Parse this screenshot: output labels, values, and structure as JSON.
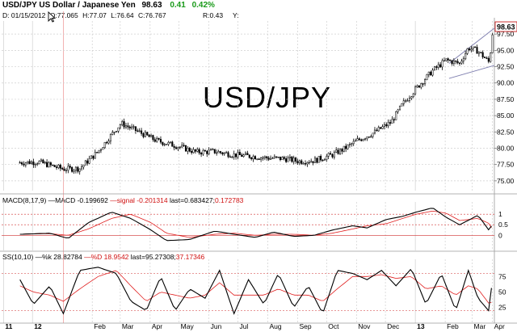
{
  "header": {
    "symbol_line": "USD/JPY US Dollar / Japanese Yen",
    "last": "98.63",
    "change": "0.41",
    "change_pct": "0.42%",
    "date_label": "D: 01/15/2012",
    "open": "O:77.065",
    "high": "H:77.07",
    "low": "L:76.64",
    "close": "C:76.767",
    "r_label": "R:0.43",
    "y_label": "Y:"
  },
  "watermark": "USD/JPY",
  "macd_header": {
    "prefix": "MACD(8,17,9) —MACD -0.199692",
    "signal": " —signal -0.201314",
    "last": " last=0.683427;",
    "last_red": "0.172783"
  },
  "ss_header": {
    "prefix": "SS(10,10) —%k 28.82784",
    "d": " —%D 18.9542",
    "last": " last=95.27308;",
    "last_red": "37.17346"
  },
  "colors": {
    "price": "#000000",
    "signal": "#e02020",
    "refline": "#d03030",
    "grid": "#cfcfcf",
    "channel": "#8080b0",
    "last_box": "#c00000"
  },
  "chart_data": [
    {
      "type": "line",
      "title": "USD/JPY US Dollar / Japanese Yen",
      "style": "candlestick (daily)",
      "x_tick_labels": [
        "11",
        "12",
        "Feb",
        "Mar",
        "Apr",
        "May",
        "Jun",
        "Jul",
        "Aug",
        "Sep",
        "Oct",
        "Nov",
        "Dec",
        "13",
        "Feb",
        "Mar",
        "Apr"
      ],
      "y_tick_labels": [
        "75.00",
        "77.50",
        "80.00",
        "82.50",
        "85.00",
        "87.50",
        "90.00",
        "92.50",
        "95.00",
        "97.50"
      ],
      "ylim": [
        73.5,
        99.5
      ],
      "last_value": 98.63,
      "series": [
        {
          "name": "USD/JPY",
          "x": [
            "2011-12-01",
            "2011-12-20",
            "2012-01-15",
            "2012-02-01",
            "2012-02-20",
            "2012-03-10",
            "2012-03-15",
            "2012-04-01",
            "2012-04-20",
            "2012-05-15",
            "2012-06-01",
            "2012-06-20",
            "2012-07-10",
            "2012-07-25",
            "2012-08-15",
            "2012-09-01",
            "2012-09-15",
            "2012-10-01",
            "2012-10-20",
            "2012-11-01",
            "2012-11-15",
            "2012-12-01",
            "2012-12-20",
            "2013-01-01",
            "2013-01-15",
            "2013-02-01",
            "2013-02-15",
            "2013-03-01",
            "2013-03-10",
            "2013-03-20",
            "2013-04-01",
            "2013-04-03",
            "2013-04-05"
          ],
          "values": [
            77.8,
            77.9,
            76.8,
            76.9,
            79.5,
            83.0,
            83.8,
            82.6,
            81.2,
            80.2,
            79.4,
            79.5,
            79.0,
            78.8,
            78.5,
            78.4,
            78.0,
            78.1,
            79.0,
            79.9,
            81.2,
            82.3,
            84.0,
            86.8,
            89.2,
            91.9,
            93.5,
            93.0,
            95.4,
            94.9,
            93.1,
            96.6,
            98.6
          ]
        }
      ]
    },
    {
      "type": "line",
      "title": "MACD(8,17,9)",
      "y_tick_labels": [
        "1",
        "0.5",
        "0"
      ],
      "ylim": [
        -0.6,
        1.35
      ],
      "reference_lines": [
        1,
        0.5,
        0
      ],
      "series": [
        {
          "name": "MACD",
          "x": [
            "2011-12-01",
            "2012-01-01",
            "2012-01-20",
            "2012-02-10",
            "2012-03-05",
            "2012-03-25",
            "2012-04-15",
            "2012-05-01",
            "2012-05-25",
            "2012-06-20",
            "2012-07-10",
            "2012-08-01",
            "2012-08-20",
            "2012-09-10",
            "2012-10-01",
            "2012-10-20",
            "2012-11-10",
            "2012-11-25",
            "2012-12-15",
            "2013-01-01",
            "2013-01-15",
            "2013-02-01",
            "2013-02-15",
            "2013-03-01",
            "2013-03-20",
            "2013-04-01",
            "2013-04-05"
          ],
          "values": [
            0.05,
            0.1,
            -0.15,
            0.6,
            1.1,
            0.8,
            0.25,
            -0.25,
            -0.2,
            0.2,
            0.05,
            -0.1,
            0.15,
            -0.05,
            0.0,
            0.25,
            0.45,
            0.35,
            0.75,
            0.9,
            1.1,
            1.3,
            0.85,
            0.5,
            0.95,
            0.2,
            0.68
          ]
        },
        {
          "name": "signal",
          "x": [
            "2011-12-01",
            "2012-01-01",
            "2012-01-20",
            "2012-02-10",
            "2012-03-05",
            "2012-03-25",
            "2012-04-15",
            "2012-05-01",
            "2012-05-25",
            "2012-06-20",
            "2012-07-10",
            "2012-08-01",
            "2012-08-20",
            "2012-09-10",
            "2012-10-01",
            "2012-10-20",
            "2012-11-10",
            "2012-11-25",
            "2012-12-15",
            "2013-01-01",
            "2013-01-15",
            "2013-02-01",
            "2013-02-15",
            "2013-03-01",
            "2013-03-20",
            "2013-04-01",
            "2013-04-05"
          ],
          "values": [
            0.05,
            0.08,
            0.0,
            0.3,
            0.8,
            1.0,
            0.6,
            0.1,
            -0.1,
            0.05,
            0.1,
            0.0,
            0.05,
            0.05,
            0.0,
            0.1,
            0.3,
            0.45,
            0.55,
            0.8,
            1.0,
            1.15,
            1.05,
            0.7,
            0.8,
            0.55,
            0.17
          ]
        }
      ]
    },
    {
      "type": "line",
      "title": "SS(10,10)",
      "y_tick_labels": [
        "75",
        "50",
        "25"
      ],
      "ylim": [
        5,
        95
      ],
      "reference_lines": [
        80,
        20
      ],
      "series": [
        {
          "name": "%k",
          "x": [
            "2011-12-01",
            "2011-12-15",
            "2012-01-01",
            "2012-01-15",
            "2012-02-01",
            "2012-02-20",
            "2012-03-10",
            "2012-03-25",
            "2012-04-10",
            "2012-04-25",
            "2012-05-10",
            "2012-05-25",
            "2012-06-10",
            "2012-06-25",
            "2012-07-10",
            "2012-07-25",
            "2012-08-10",
            "2012-08-25",
            "2012-09-10",
            "2012-09-25",
            "2012-10-10",
            "2012-10-25",
            "2012-11-10",
            "2012-11-25",
            "2012-12-10",
            "2012-12-25",
            "2013-01-10",
            "2013-01-25",
            "2013-02-10",
            "2013-02-25",
            "2013-03-10",
            "2013-03-20",
            "2013-04-01",
            "2013-04-05"
          ],
          "values": [
            70,
            30,
            60,
            15,
            85,
            90,
            80,
            35,
            20,
            75,
            20,
            55,
            40,
            85,
            15,
            70,
            30,
            80,
            25,
            60,
            15,
            85,
            80,
            70,
            85,
            60,
            88,
            30,
            80,
            20,
            85,
            40,
            18,
            95
          ]
        },
        {
          "name": "%D",
          "x": [
            "2011-12-01",
            "2011-12-15",
            "2012-01-01",
            "2012-01-15",
            "2012-02-01",
            "2012-02-20",
            "2012-03-10",
            "2012-03-25",
            "2012-04-10",
            "2012-04-25",
            "2012-05-10",
            "2012-05-25",
            "2012-06-10",
            "2012-06-25",
            "2012-07-10",
            "2012-07-25",
            "2012-08-10",
            "2012-08-25",
            "2012-09-10",
            "2012-09-25",
            "2012-10-10",
            "2012-10-25",
            "2012-11-10",
            "2012-11-25",
            "2012-12-10",
            "2012-12-25",
            "2013-01-10",
            "2013-01-25",
            "2013-02-10",
            "2013-02-25",
            "2013-03-10",
            "2013-03-20",
            "2013-04-01",
            "2013-04-05"
          ],
          "values": [
            60,
            50,
            45,
            35,
            55,
            75,
            85,
            60,
            35,
            50,
            45,
            40,
            45,
            65,
            45,
            45,
            45,
            55,
            45,
            45,
            35,
            55,
            75,
            75,
            78,
            72,
            75,
            55,
            60,
            45,
            60,
            55,
            30,
            37
          ]
        }
      ]
    }
  ]
}
